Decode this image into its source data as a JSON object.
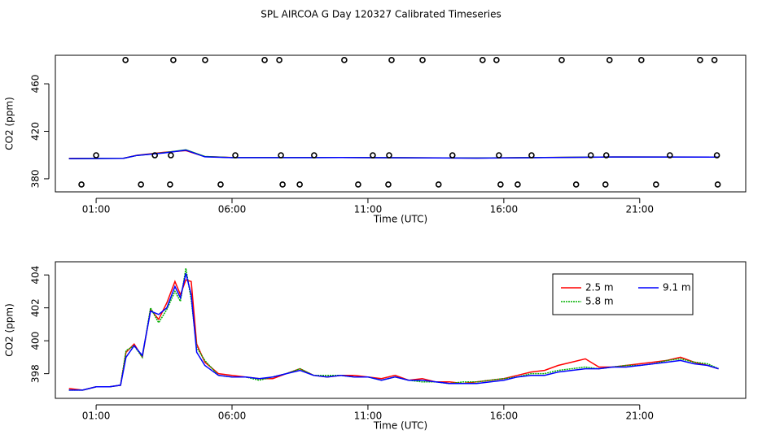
{
  "title": "SPL AIRCOA G  Day 120327  Calibrated Timeseries",
  "chart_data": [
    {
      "type": "line",
      "xlabel": "Time (UTC)",
      "ylabel": "CO2 (ppm)",
      "xlim": [
        -0.5,
        24.9
      ],
      "ylim": [
        369,
        484
      ],
      "xticks": [
        {
          "value": 1,
          "label": "01:00"
        },
        {
          "value": 6,
          "label": "06:00"
        },
        {
          "value": 11,
          "label": "11:00"
        },
        {
          "value": 16,
          "label": "16:00"
        },
        {
          "value": 21,
          "label": "21:00"
        }
      ],
      "yticks": [
        380,
        420,
        460
      ],
      "x": [
        0,
        2,
        2.5,
        3.5,
        4.3,
        5,
        6,
        10,
        15,
        20,
        23.9
      ],
      "series": [
        {
          "color": "#ff0000",
          "values": [
            397.1,
            397.3,
            399.8,
            402.3,
            403.7,
            398.7,
            397.9,
            397.9,
            397.5,
            398.4,
            398.3
          ]
        },
        {
          "color": "#00b000",
          "values": [
            397.0,
            397.3,
            399.7,
            401.9,
            404.4,
            398.8,
            397.8,
            397.9,
            397.5,
            398.4,
            398.3
          ]
        },
        {
          "color": "#0000ff",
          "values": [
            397.0,
            397.3,
            399.7,
            401.8,
            404.1,
            398.5,
            397.8,
            397.9,
            397.4,
            398.4,
            398.3
          ]
        }
      ],
      "points": {
        "x": [
          2.08,
          3.84,
          5.01,
          7.2,
          7.74,
          10.13,
          11.87,
          13.01,
          15.22,
          15.73,
          18.13,
          19.89,
          21.06,
          23.22,
          23.75,
          1.0,
          3.16,
          3.75,
          6.12,
          7.8,
          9.02,
          11.18,
          11.78,
          14.11,
          15.82,
          17.02,
          19.2,
          19.77,
          22.11,
          23.84,
          0.46,
          2.65,
          3.72,
          5.58,
          7.86,
          8.49,
          10.64,
          11.75,
          13.6,
          15.88,
          16.51,
          18.66,
          19.74,
          21.6,
          23.87
        ],
        "y": [
          480,
          480,
          480,
          480,
          480,
          480,
          480,
          480,
          480,
          480,
          480,
          480,
          480,
          480,
          480,
          399.8,
          399.8,
          399.8,
          399.8,
          399.8,
          399.8,
          399.8,
          399.8,
          399.8,
          399.8,
          399.8,
          399.8,
          399.8,
          399.8,
          399.8,
          375.2,
          375.2,
          375.2,
          375.2,
          375.2,
          375.2,
          375.2,
          375.2,
          375.2,
          375.2,
          375.2,
          375.2,
          375.2,
          375.2,
          375.2
        ]
      }
    },
    {
      "type": "line",
      "xlabel": "Time (UTC)",
      "ylabel": "CO2 (ppm)",
      "xlim": [
        -0.5,
        24.9
      ],
      "ylim": [
        396.5,
        404.8
      ],
      "xticks": [
        {
          "value": 1,
          "label": "01:00"
        },
        {
          "value": 6,
          "label": "06:00"
        },
        {
          "value": 11,
          "label": "11:00"
        },
        {
          "value": 16,
          "label": "16:00"
        },
        {
          "value": 21,
          "label": "21:00"
        }
      ],
      "yticks": [
        398,
        400,
        402,
        404
      ],
      "legend": "top-right",
      "x": [
        0,
        0.5,
        1,
        1.5,
        1.9,
        2.1,
        2.4,
        2.7,
        3.0,
        3.3,
        3.6,
        3.9,
        4.1,
        4.3,
        4.5,
        4.7,
        5.0,
        5.5,
        6,
        6.5,
        7,
        7.5,
        8,
        8.5,
        9,
        9.5,
        10,
        10.5,
        11,
        11.5,
        12,
        12.5,
        13,
        13.5,
        14,
        14.5,
        15,
        15.5,
        16,
        16.5,
        17,
        17.5,
        18,
        18.5,
        19,
        19.5,
        20,
        20.5,
        21,
        21.5,
        22,
        22.5,
        23,
        23.5,
        23.9
      ],
      "series": [
        {
          "name": "2.5 m",
          "color": "#ff0000",
          "values": [
            397.1,
            397.0,
            397.2,
            397.2,
            397.3,
            399.3,
            399.8,
            399.0,
            401.9,
            401.3,
            402.3,
            403.6,
            402.8,
            403.7,
            403.6,
            399.8,
            398.7,
            398.0,
            397.9,
            397.8,
            397.7,
            397.7,
            398.0,
            398.3,
            397.9,
            397.8,
            397.9,
            397.9,
            397.8,
            397.7,
            397.9,
            397.6,
            397.7,
            397.5,
            397.5,
            397.4,
            397.5,
            397.6,
            397.7,
            397.9,
            398.1,
            398.2,
            398.5,
            398.7,
            398.9,
            398.4,
            398.4,
            398.5,
            398.6,
            398.7,
            398.8,
            399.0,
            398.7,
            398.5,
            398.3
          ]
        },
        {
          "name": "5.8 m",
          "color": "#00b000",
          "dash": "2,1",
          "values": [
            397.0,
            397.0,
            397.2,
            397.2,
            397.3,
            399.4,
            399.7,
            399.0,
            402.0,
            401.1,
            401.9,
            403.0,
            402.4,
            404.4,
            402.5,
            399.6,
            398.8,
            397.9,
            397.8,
            397.8,
            397.6,
            397.8,
            398.0,
            398.3,
            397.9,
            397.9,
            397.9,
            397.8,
            397.8,
            397.6,
            397.8,
            397.6,
            397.5,
            397.5,
            397.4,
            397.5,
            397.5,
            397.6,
            397.7,
            397.8,
            398.0,
            398.0,
            398.2,
            398.3,
            398.4,
            398.3,
            398.4,
            398.5,
            398.5,
            398.6,
            398.8,
            398.9,
            398.7,
            398.6,
            398.3
          ]
        },
        {
          "name": "9.1 m",
          "color": "#0000ff",
          "values": [
            397.0,
            397.0,
            397.2,
            397.2,
            397.3,
            399.0,
            399.7,
            399.1,
            401.8,
            401.6,
            402.0,
            403.3,
            402.6,
            404.1,
            402.8,
            399.3,
            398.5,
            397.9,
            397.8,
            397.8,
            397.7,
            397.8,
            398.0,
            398.2,
            397.9,
            397.8,
            397.9,
            397.8,
            397.8,
            397.6,
            397.8,
            397.6,
            397.6,
            397.5,
            397.4,
            397.4,
            397.4,
            397.5,
            397.6,
            397.8,
            397.9,
            397.9,
            398.1,
            398.2,
            398.3,
            398.3,
            398.4,
            398.4,
            398.5,
            398.6,
            398.7,
            398.8,
            398.6,
            398.5,
            398.3
          ]
        }
      ]
    }
  ]
}
